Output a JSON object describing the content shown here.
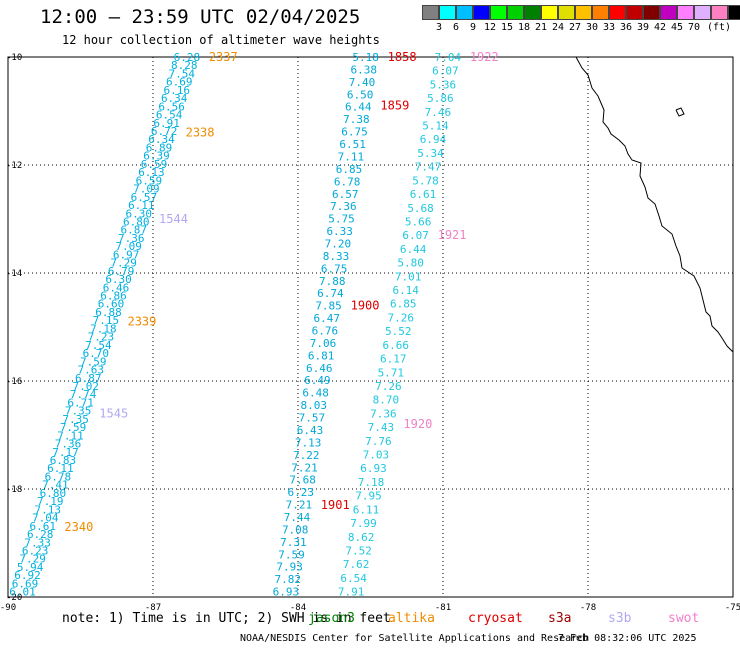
{
  "header": {
    "title": "12:00 — 23:59 UTC 02/04/2025",
    "subtitle": "12 hour collection of altimeter wave heights"
  },
  "colorbar": {
    "colors": [
      "#808080",
      "#00ffff",
      "#00bfff",
      "#0000ff",
      "#00ff00",
      "#00d000",
      "#008000",
      "#ffff00",
      "#e0e000",
      "#ffc000",
      "#ff8000",
      "#ff0000",
      "#c00000",
      "#800000",
      "#c000c0",
      "#ff80ff",
      "#e0b0ff",
      "#ff80c0",
      "#000000"
    ],
    "labels": [
      "3",
      "6",
      "9",
      "12",
      "15",
      "18",
      "21",
      "24",
      "27",
      "30",
      "33",
      "36",
      "39",
      "42",
      "45",
      "70",
      "(ft)"
    ]
  },
  "map": {
    "lon_labels": [
      "-90",
      "-87",
      "-84",
      "-81",
      "-78",
      "-75"
    ],
    "lat_labels": [
      "-10",
      "-12",
      "-14",
      "-16",
      "-18",
      "-20"
    ],
    "lon_range": [
      -90,
      -75
    ],
    "lat_range": [
      -10,
      -20
    ]
  },
  "tracks": [
    {
      "name": "track_left",
      "color": "#00b0e0",
      "start": [
        -89.7,
        -19.9
      ],
      "end": [
        -86.3,
        -10.0
      ],
      "values": [
        "6.01",
        "6.69",
        "6.92",
        "5.94",
        "7.29",
        "6.23",
        "7.33",
        "6.28",
        "6.61",
        "7.04",
        "7.13",
        "7.19",
        "6.80",
        "7.41",
        "6.78",
        "6.11",
        "6.83",
        "7.17",
        "7.36",
        "7.11",
        "7.59",
        "7.35",
        "7.35",
        "6.71",
        "7.74",
        "7.02",
        "6.87",
        "7.63",
        "7.59",
        "6.70",
        "7.54",
        "7.23",
        "7.18",
        "7.15",
        "6.88",
        "6.60",
        "6.86",
        "6.46",
        "6.30",
        "6.79",
        "7.29",
        "6.97",
        "7.09",
        "7.36",
        "6.87",
        "6.80",
        "6.30",
        "6.11",
        "6.57",
        "7.09",
        "6.59",
        "6.13",
        "6.59",
        "6.39",
        "6.89",
        "6.34",
        "6.72",
        "6.91",
        "6.54",
        "6.56",
        "6.34",
        "6.16",
        "6.69",
        "7.54",
        "8.28",
        "6.28"
      ],
      "labels": [
        {
          "text": "2337",
          "lat": -10.0,
          "color": "#f08c00"
        },
        {
          "text": "2338",
          "lat": -11.4,
          "color": "#f08c00"
        },
        {
          "text": "1544",
          "lat": -13.0,
          "color": "#b0a8f0"
        },
        {
          "text": "2339",
          "lat": -14.9,
          "color": "#f08c00"
        },
        {
          "text": "1545",
          "lat": -16.6,
          "color": "#b0a8f0"
        },
        {
          "text": "2340",
          "lat": -18.7,
          "color": "#f08c00"
        }
      ]
    },
    {
      "name": "track_mid",
      "color": "#00a8d8",
      "start": [
        -84.25,
        -19.9
      ],
      "end": [
        -82.6,
        -10.0
      ],
      "values": [
        "6.93",
        "7.82",
        "7.93",
        "7.59",
        "7.31",
        "7.08",
        "7.44",
        "7.21",
        "6.23",
        "7.68",
        "7.21",
        "7.22",
        "7.13",
        "6.43",
        "7.57",
        "8.03",
        "6.48",
        "6.49",
        "6.46",
        "6.81",
        "7.06",
        "6.76",
        "6.47",
        "7.85",
        "6.74",
        "7.88",
        "6.75",
        "8.33",
        "7.20",
        "6.33",
        "5.75",
        "7.36",
        "6.57",
        "6.78",
        "6.85",
        "7.11",
        "6.51",
        "6.75",
        "7.38",
        "6.44",
        "6.50",
        "7.40",
        "6.38",
        "5.18"
      ],
      "labels": [
        {
          "text": "1858",
          "lat": -10.0,
          "color": "#e00000"
        },
        {
          "text": "1859",
          "lat": -10.9,
          "color": "#e00000"
        },
        {
          "text": "1900",
          "lat": -14.6,
          "color": "#e00000"
        },
        {
          "text": "1901",
          "lat": -18.3,
          "color": "#e00000"
        }
      ]
    },
    {
      "name": "track_right",
      "color": "#20c8e0",
      "start": [
        -82.9,
        -19.9
      ],
      "end": [
        -80.9,
        -10.0
      ],
      "values": [
        "7.91",
        "6.54",
        "7.62",
        "7.52",
        "8.62",
        "7.99",
        "6.11",
        "7.95",
        "7.18",
        "6.93",
        "7.03",
        "7.76",
        "7.43",
        "7.36",
        "8.70",
        "7.26",
        "5.71",
        "6.17",
        "6.66",
        "5.52",
        "7.26",
        "6.85",
        "6.14",
        "7.01",
        "5.80",
        "6.44",
        "6.07",
        "5.66",
        "5.68",
        "6.61",
        "5.78",
        "7.47",
        "5.34",
        "6.94",
        "5.14",
        "7.46",
        "5.86",
        "5.36",
        "6.07",
        "7.04"
      ],
      "labels": [
        {
          "text": "1922",
          "lat": -10.0,
          "color": "#f080c8"
        },
        {
          "text": "1921",
          "lat": -13.3,
          "color": "#f080c8"
        },
        {
          "text": "1920",
          "lat": -16.8,
          "color": "#f080c8"
        }
      ]
    }
  ],
  "footer": {
    "note": "note: 1) Time is in UTC; 2) SWH is in feet",
    "satellites": [
      {
        "name": "jason3",
        "color": "#008000"
      },
      {
        "name": "altika",
        "color": "#f08c00"
      },
      {
        "name": "cryosat",
        "color": "#e00000"
      },
      {
        "name": "s3a",
        "color": "#a00000"
      },
      {
        "name": "s3b",
        "color": "#b0a8f0"
      },
      {
        "name": "swot",
        "color": "#f080c8"
      }
    ],
    "credit": "NOAA/NESDIS Center for Satellite Applications and Research",
    "timestamp": "7 Feb 08:32:06 UTC 2025"
  }
}
